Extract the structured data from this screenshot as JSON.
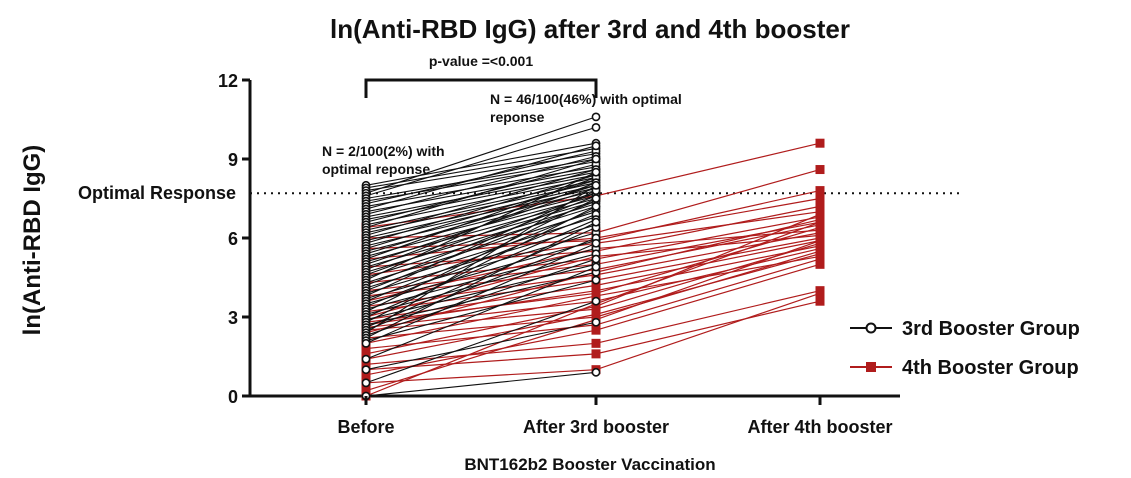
{
  "chart_data": {
    "type": "line",
    "title": "ln(Anti-RBD IgG) after 3rd and 4th booster",
    "xlabel": "BNT162b2 Booster Vaccination",
    "ylabel": "ln(Anti-RBD IgG)",
    "categories": [
      "Before",
      "After 3rd booster",
      "After 4th booster"
    ],
    "ylim": [
      0,
      12
    ],
    "yticks": [
      0,
      3,
      6,
      9,
      12
    ],
    "reference_line": {
      "label": "Optimal Response",
      "value": 7.7,
      "style": "dotted"
    },
    "significance": {
      "label": "p-value =<0.001",
      "between": [
        "Before",
        "After 3rd booster"
      ]
    },
    "annotations": [
      {
        "text": [
          "N = 2/100(2%) with",
          "optimal reponse"
        ],
        "near": "Before"
      },
      {
        "text": [
          "N = 46/100(46%) with optimal",
          "reponse"
        ],
        "near": "After 3rd booster"
      }
    ],
    "legend": {
      "position": "right"
    },
    "series": [
      {
        "name": "3rd Booster Group",
        "color": "#111111",
        "marker": "open-circle",
        "pairs": [
          [
            8.0,
            9.6
          ],
          [
            7.9,
            9.4
          ],
          [
            7.8,
            9.2
          ],
          [
            7.7,
            10.6
          ],
          [
            7.6,
            10.2
          ],
          [
            7.5,
            9.0
          ],
          [
            7.4,
            8.9
          ],
          [
            7.3,
            9.3
          ],
          [
            7.2,
            8.7
          ],
          [
            7.1,
            9.5
          ],
          [
            7.0,
            8.6
          ],
          [
            6.9,
            9.1
          ],
          [
            6.8,
            8.5
          ],
          [
            6.7,
            8.4
          ],
          [
            6.6,
            8.8
          ],
          [
            6.5,
            8.3
          ],
          [
            6.4,
            9.0
          ],
          [
            6.3,
            8.2
          ],
          [
            6.2,
            8.1
          ],
          [
            6.1,
            8.6
          ],
          [
            6.0,
            8.0
          ],
          [
            5.9,
            7.9
          ],
          [
            5.8,
            8.4
          ],
          [
            5.7,
            7.8
          ],
          [
            5.6,
            8.2
          ],
          [
            5.5,
            7.7
          ],
          [
            5.4,
            8.0
          ],
          [
            5.3,
            7.6
          ],
          [
            5.2,
            8.3
          ],
          [
            5.1,
            7.5
          ],
          [
            5.0,
            7.9
          ],
          [
            4.9,
            7.4
          ],
          [
            4.8,
            8.1
          ],
          [
            4.7,
            7.3
          ],
          [
            4.6,
            7.7
          ],
          [
            4.5,
            7.2
          ],
          [
            4.4,
            8.5
          ],
          [
            4.3,
            7.0
          ],
          [
            4.2,
            7.6
          ],
          [
            4.1,
            6.8
          ],
          [
            4.0,
            7.4
          ],
          [
            3.9,
            6.5
          ],
          [
            3.8,
            7.8
          ],
          [
            3.7,
            6.2
          ],
          [
            3.6,
            7.1
          ],
          [
            3.5,
            5.9
          ],
          [
            3.4,
            6.9
          ],
          [
            3.3,
            5.6
          ],
          [
            3.2,
            7.5
          ],
          [
            3.1,
            5.4
          ],
          [
            3.0,
            6.7
          ],
          [
            2.9,
            5.0
          ],
          [
            2.8,
            7.2
          ],
          [
            2.7,
            4.7
          ],
          [
            2.6,
            6.4
          ],
          [
            2.5,
            6.0
          ],
          [
            2.4,
            8.0
          ],
          [
            2.3,
            5.2
          ],
          [
            2.2,
            6.6
          ],
          [
            2.1,
            4.4
          ],
          [
            2.0,
            5.8
          ],
          [
            1.4,
            4.9
          ],
          [
            1.0,
            2.8
          ],
          [
            0.5,
            3.6
          ],
          [
            0.0,
            0.9
          ]
        ]
      },
      {
        "name": "4th Booster Group",
        "color": "#b01c1c",
        "marker": "filled-square",
        "triples": [
          [
            6.4,
            7.6,
            9.6
          ],
          [
            6.0,
            6.2,
            8.6
          ],
          [
            5.6,
            5.9,
            7.8
          ],
          [
            5.2,
            6.0,
            7.5
          ],
          [
            4.9,
            5.5,
            7.2
          ],
          [
            4.6,
            5.8,
            7.0
          ],
          [
            4.3,
            5.2,
            6.8
          ],
          [
            4.0,
            5.0,
            6.6
          ],
          [
            3.8,
            4.8,
            6.5
          ],
          [
            3.6,
            5.6,
            6.3
          ],
          [
            3.4,
            4.6,
            6.2
          ],
          [
            3.2,
            4.4,
            6.0
          ],
          [
            3.0,
            5.3,
            6.1
          ],
          [
            2.9,
            4.2,
            5.9
          ],
          [
            2.8,
            3.9,
            6.4
          ],
          [
            2.7,
            4.0,
            5.7
          ],
          [
            2.6,
            3.6,
            5.6
          ],
          [
            2.5,
            3.3,
            5.8
          ],
          [
            2.4,
            4.7,
            6.7
          ],
          [
            2.2,
            3.0,
            5.5
          ],
          [
            2.0,
            3.8,
            5.3
          ],
          [
            1.8,
            2.7,
            5.2
          ],
          [
            1.6,
            3.4,
            6.9
          ],
          [
            1.4,
            3.1,
            5.4
          ],
          [
            1.2,
            2.0,
            4.0
          ],
          [
            1.0,
            1.6,
            3.6
          ],
          [
            0.8,
            2.5,
            5.0
          ],
          [
            0.5,
            1.0,
            3.9
          ],
          [
            0.2,
            2.9,
            5.9
          ],
          [
            0.0,
            3.5,
            6.6
          ]
        ]
      }
    ]
  }
}
